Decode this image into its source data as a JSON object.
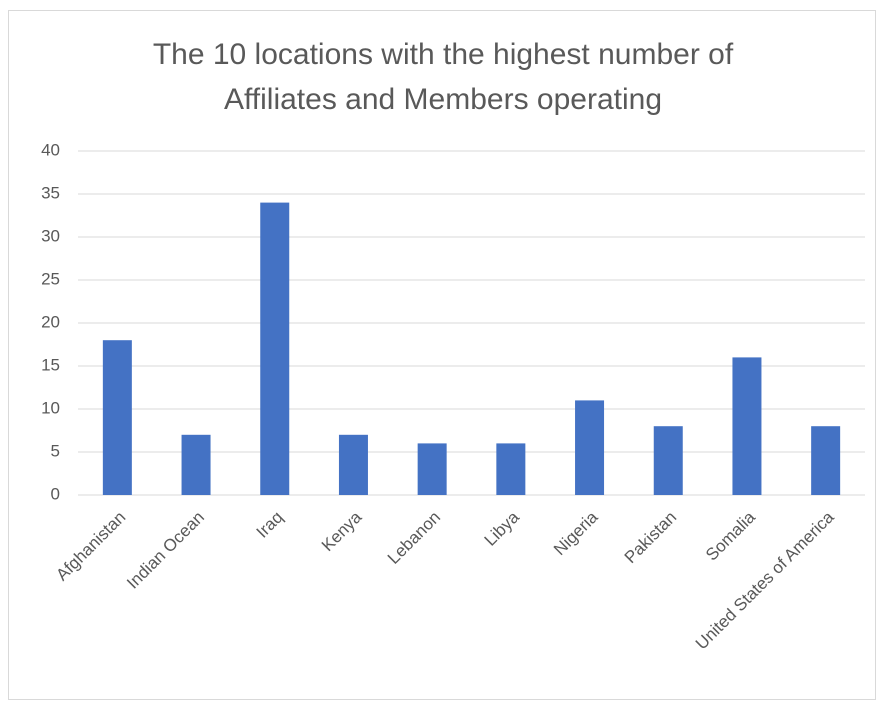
{
  "chart_data": {
    "type": "bar",
    "title": "The 10 locations with the highest number of Affiliates and Members operating",
    "categories": [
      "Afghanistan",
      "Indian Ocean",
      "Iraq",
      "Kenya",
      "Lebanon",
      "Libya",
      "Nigeria",
      "Pakistan",
      "Somalia",
      "United States of America"
    ],
    "values": [
      18,
      7,
      34,
      7,
      6,
      6,
      11,
      8,
      16,
      8
    ],
    "color": "#4472c4",
    "ylim": [
      0,
      40
    ],
    "yticks": [
      0,
      5,
      10,
      15,
      20,
      25,
      30,
      35,
      40
    ],
    "grid": true
  }
}
